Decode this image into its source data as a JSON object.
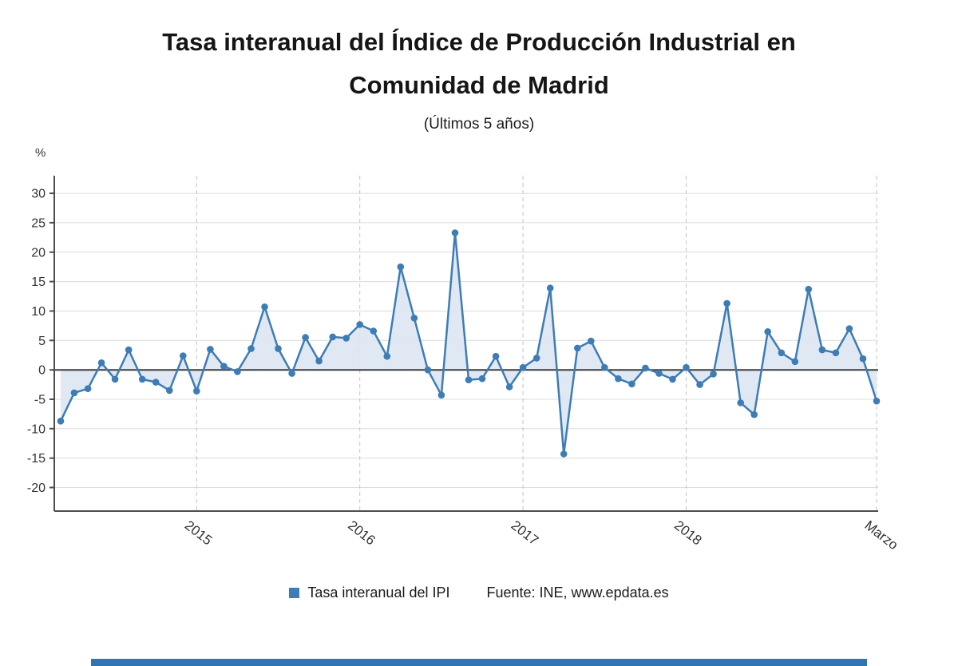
{
  "page": {
    "title": "Tasa interanual del Índice de Producción Industrial en Comunidad de Madrid",
    "subtitle": "(Últimos 5 años)"
  },
  "legend": {
    "series_label": "Tasa interanual del IPI",
    "source": "Fuente: INE, www.epdata.es"
  },
  "colors": {
    "line": "#3e7cb5",
    "marker": "#3e7cb5",
    "area": "#dbe6f2",
    "zero_line": "#3d3d3d",
    "axis": "#4d4d4d",
    "grid": "#dcdcdc",
    "grid_dash": "#c4c4c4",
    "text": "#333333",
    "footer_bar": "#2e75b6"
  },
  "chart_data": {
    "type": "line",
    "title": "Tasa interanual del Índice de Producción Industrial en Comunidad de Madrid",
    "subtitle": "(Últimos 5 años)",
    "ylabel": "%",
    "xlabel": "",
    "ylim": [
      -24,
      33
    ],
    "yticks": [
      30,
      25,
      20,
      15,
      10,
      5,
      0,
      -5,
      -10,
      -15,
      -20
    ],
    "x_unit": "month",
    "xticks": [
      {
        "label": "2015",
        "index": 10
      },
      {
        "label": "2016",
        "index": 22
      },
      {
        "label": "2017",
        "index": 34
      },
      {
        "label": "2018",
        "index": 46
      },
      {
        "label": "Marzo",
        "index": 60
      }
    ],
    "series": [
      {
        "name": "Tasa interanual del IPI",
        "values": [
          -8.7,
          -3.9,
          -3.2,
          1.2,
          -1.6,
          3.4,
          -1.6,
          -2.1,
          -3.5,
          2.4,
          -3.6,
          3.5,
          0.6,
          -0.3,
          3.6,
          10.7,
          3.6,
          -0.6,
          5.5,
          1.5,
          5.6,
          5.4,
          7.7,
          6.6,
          2.3,
          17.5,
          8.8,
          0.0,
          -4.3,
          23.3,
          -1.7,
          -1.5,
          2.3,
          -2.9,
          0.4,
          2.0,
          13.9,
          -14.3,
          3.7,
          4.9,
          0.4,
          -1.5,
          -2.4,
          0.3,
          -0.6,
          -1.6,
          0.4,
          -2.5,
          -0.7,
          11.3,
          -5.6,
          -7.6,
          6.5,
          2.9,
          1.4,
          13.7,
          3.4,
          2.9,
          7.0,
          1.9,
          -5.3
        ]
      }
    ],
    "grid": {
      "horizontal": "solid",
      "vertical": "dashed-at-year-ticks"
    },
    "legend_position": "bottom",
    "area_fill": true,
    "marker": "circle"
  }
}
